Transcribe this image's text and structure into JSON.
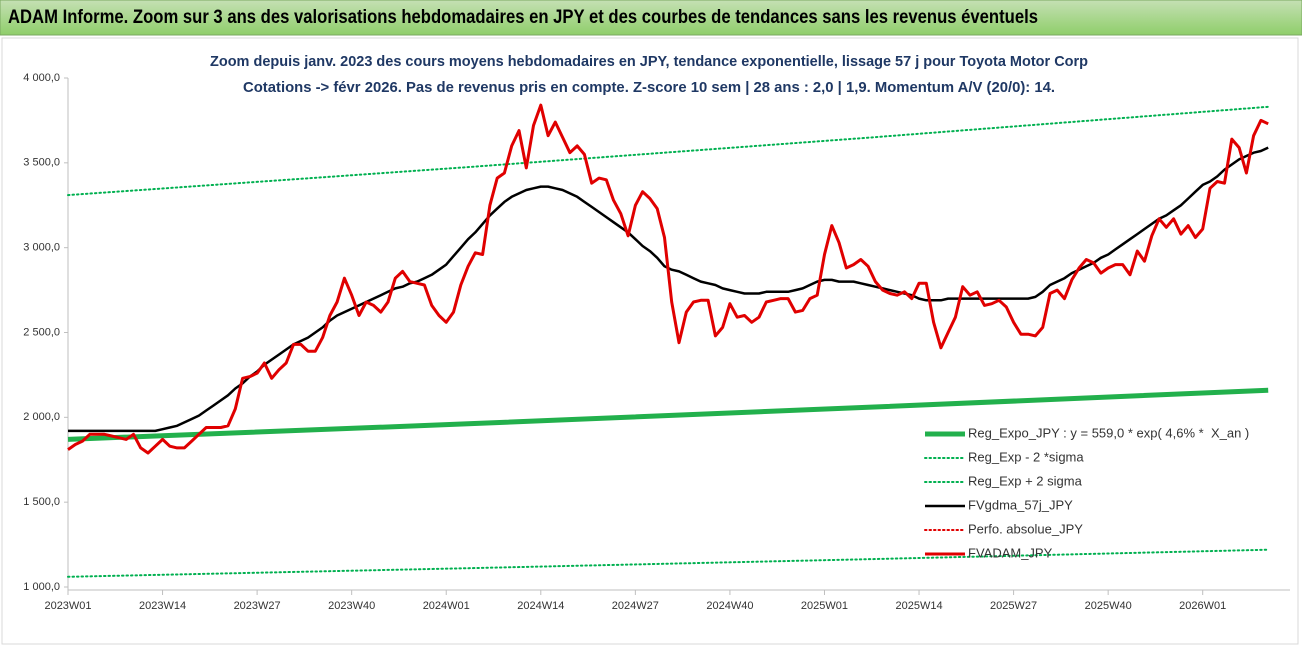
{
  "chart_data": {
    "type": "line",
    "title": "ADAM Informe. Zoom sur 3 ans des valorisations hebdomadaires en JPY et des courbes de tendances sans les revenus éventuels",
    "subtitle": [
      "Zoom depuis janv. 2023 des cours moyens hebdomadaires en JPY, tendance exponentielle, lissage 57 j pour Toyota Motor Corp",
      "Cotations -> févr 2026. Pas de revenus pris en compte. Z-score 10 sem | 28 ans : 2,0 | 1,9. Momentum A/V (20/0): 14."
    ],
    "xlim": [
      0,
      168
    ],
    "ylim": [
      1000,
      4000
    ],
    "xticks": [
      {
        "value": 0,
        "label": "2023W01"
      },
      {
        "value": 13,
        "label": "2023W14"
      },
      {
        "value": 26,
        "label": "2023W27"
      },
      {
        "value": 39,
        "label": "2023W40"
      },
      {
        "value": 52,
        "label": "2024W01"
      },
      {
        "value": 65,
        "label": "2024W14"
      },
      {
        "value": 78,
        "label": "2024W27"
      },
      {
        "value": 91,
        "label": "2024W40"
      },
      {
        "value": 104,
        "label": "2025W01"
      },
      {
        "value": 117,
        "label": "2025W14"
      },
      {
        "value": 130,
        "label": "2025W27"
      },
      {
        "value": 143,
        "label": "2025W40"
      },
      {
        "value": 156,
        "label": "2026W01"
      }
    ],
    "yticks": [
      {
        "value": 1000,
        "label": "1 000,0"
      },
      {
        "value": 1500,
        "label": "1 500,0"
      },
      {
        "value": 2000,
        "label": "2 000,0"
      },
      {
        "value": 2500,
        "label": "2 500,0"
      },
      {
        "value": 3000,
        "label": "3 000,0"
      },
      {
        "value": 3500,
        "label": "3 500,0"
      },
      {
        "value": 4000,
        "label": "4 000,0"
      }
    ],
    "grid": false,
    "legend": "lower-right",
    "x": [
      0,
      1,
      2,
      3,
      4,
      5,
      6,
      7,
      8,
      9,
      10,
      11,
      12,
      13,
      14,
      15,
      16,
      17,
      18,
      19,
      20,
      21,
      22,
      23,
      24,
      25,
      26,
      27,
      28,
      29,
      30,
      31,
      32,
      33,
      34,
      35,
      36,
      37,
      38,
      39,
      40,
      41,
      42,
      43,
      44,
      45,
      46,
      47,
      48,
      49,
      50,
      51,
      52,
      53,
      54,
      55,
      56,
      57,
      58,
      59,
      60,
      61,
      62,
      63,
      64,
      65,
      66,
      67,
      68,
      69,
      70,
      71,
      72,
      73,
      74,
      75,
      76,
      77,
      78,
      79,
      80,
      81,
      82,
      83,
      84,
      85,
      86,
      87,
      88,
      89,
      90,
      91,
      92,
      93,
      94,
      95,
      96,
      97,
      98,
      99,
      100,
      101,
      102,
      103,
      104,
      105,
      106,
      107,
      108,
      109,
      110,
      111,
      112,
      113,
      114,
      115,
      116,
      117,
      118,
      119,
      120,
      121,
      122,
      123,
      124,
      125,
      126,
      127,
      128,
      129,
      130,
      131,
      132,
      133,
      134,
      135,
      136,
      137,
      138,
      139,
      140,
      141,
      142,
      143,
      144,
      145,
      146,
      147,
      148,
      149,
      150,
      151,
      152,
      153,
      154,
      155,
      156,
      157,
      158,
      159,
      160,
      161,
      162,
      163,
      164,
      165
    ],
    "series": [
      {
        "name": "Reg_Expo_JPY : y = 559,0 * exp( 4,6% *  X_an )",
        "color": "#22b04c",
        "style": "thick",
        "x": [
          0,
          55,
          110,
          165
        ],
        "values": [
          1870,
          1962,
          2059,
          2160
        ]
      },
      {
        "name": "Reg_Exp - 2 *sigma",
        "color": "#00b050",
        "style": "dotted",
        "x": [
          0,
          55,
          110,
          165
        ],
        "values": [
          1060,
          1111,
          1164,
          1220
        ]
      },
      {
        "name": "Reg_Exp + 2 sigma",
        "color": "#00b050",
        "style": "dotted",
        "x": [
          0,
          55,
          110,
          165
        ],
        "values": [
          3310,
          3475,
          3648,
          3830
        ]
      },
      {
        "name": "FVgdma_57j_JPY",
        "color": "#000000",
        "style": "solid",
        "values": [
          1920,
          1920,
          1920,
          1920,
          1920,
          1920,
          1920,
          1920,
          1920,
          1920,
          1920,
          1920,
          1920,
          1930,
          1940,
          1950,
          1970,
          1990,
          2010,
          2040,
          2070,
          2100,
          2130,
          2170,
          2200,
          2240,
          2270,
          2310,
          2340,
          2370,
          2400,
          2430,
          2450,
          2470,
          2500,
          2530,
          2570,
          2600,
          2620,
          2640,
          2660,
          2680,
          2700,
          2720,
          2740,
          2760,
          2770,
          2790,
          2800,
          2820,
          2840,
          2870,
          2900,
          2950,
          3000,
          3050,
          3090,
          3140,
          3190,
          3230,
          3270,
          3300,
          3320,
          3340,
          3350,
          3360,
          3360,
          3350,
          3340,
          3320,
          3300,
          3270,
          3240,
          3210,
          3180,
          3150,
          3120,
          3090,
          3050,
          3010,
          2980,
          2940,
          2890,
          2870,
          2860,
          2840,
          2820,
          2800,
          2790,
          2780,
          2760,
          2750,
          2740,
          2730,
          2730,
          2730,
          2740,
          2740,
          2740,
          2740,
          2750,
          2760,
          2780,
          2800,
          2810,
          2810,
          2800,
          2800,
          2800,
          2790,
          2780,
          2770,
          2760,
          2750,
          2740,
          2730,
          2720,
          2700,
          2690,
          2690,
          2690,
          2700,
          2700,
          2700,
          2700,
          2700,
          2700,
          2700,
          2700,
          2700,
          2700,
          2700,
          2700,
          2710,
          2740,
          2780,
          2800,
          2820,
          2850,
          2870,
          2890,
          2910,
          2940,
          2960,
          2990,
          3020,
          3050,
          3080,
          3110,
          3140,
          3170,
          3190,
          3220,
          3250,
          3290,
          3330,
          3370,
          3390,
          3420,
          3460,
          3490,
          3520,
          3540,
          3560,
          3570,
          3590
        ]
      },
      {
        "name": "Perfo. absolue_JPY",
        "color": "#e00000",
        "style": "dotted"
      },
      {
        "name": "FVADAM_JPY",
        "color": "#e00000",
        "style": "bold",
        "values": [
          1810,
          1840,
          1860,
          1900,
          1900,
          1900,
          1890,
          1880,
          1870,
          1900,
          1820,
          1790,
          1830,
          1870,
          1830,
          1820,
          1820,
          1860,
          1900,
          1940,
          1940,
          1940,
          1950,
          2050,
          2230,
          2240,
          2260,
          2320,
          2230,
          2280,
          2320,
          2430,
          2430,
          2390,
          2390,
          2470,
          2600,
          2680,
          2820,
          2720,
          2600,
          2680,
          2660,
          2620,
          2680,
          2820,
          2860,
          2800,
          2790,
          2780,
          2660,
          2600,
          2560,
          2620,
          2780,
          2890,
          2970,
          2960,
          3250,
          3410,
          3440,
          3600,
          3690,
          3470,
          3720,
          3840,
          3660,
          3740,
          3650,
          3560,
          3600,
          3550,
          3380,
          3410,
          3400,
          3280,
          3200,
          3070,
          3250,
          3330,
          3290,
          3230,
          3060,
          2680,
          2440,
          2620,
          2680,
          2690,
          2690,
          2480,
          2530,
          2670,
          2590,
          2600,
          2560,
          2590,
          2680,
          2690,
          2700,
          2700,
          2620,
          2630,
          2700,
          2720,
          2960,
          3130,
          3030,
          2880,
          2900,
          2930,
          2890,
          2800,
          2750,
          2730,
          2720,
          2740,
          2700,
          2790,
          2790,
          2560,
          2410,
          2500,
          2590,
          2770,
          2720,
          2740,
          2660,
          2670,
          2690,
          2650,
          2560,
          2490,
          2490,
          2480,
          2530,
          2730,
          2750,
          2700,
          2810,
          2880,
          2930,
          2910,
          2850,
          2880,
          2900,
          2900,
          2840,
          2980,
          2920,
          3070,
          3170,
          3120,
          3170,
          3080,
          3130,
          3060,
          3110,
          3350,
          3390,
          3380,
          3640,
          3590,
          3440,
          3660,
          3750,
          3730
        ]
      }
    ]
  }
}
